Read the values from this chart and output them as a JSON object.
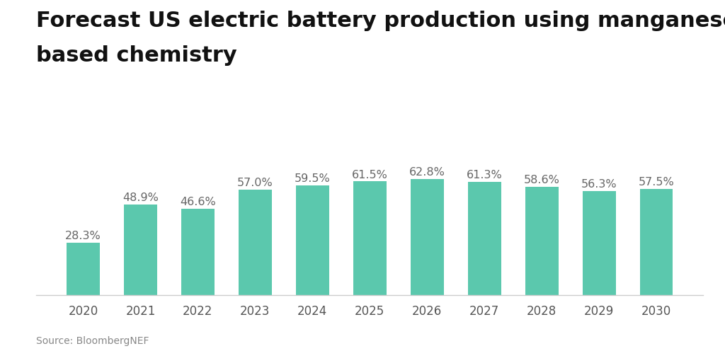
{
  "categories": [
    "2020",
    "2021",
    "2022",
    "2023",
    "2024",
    "2025",
    "2026",
    "2027",
    "2028",
    "2029",
    "2030"
  ],
  "values": [
    28.3,
    48.9,
    46.6,
    57.0,
    59.5,
    61.5,
    62.8,
    61.3,
    58.6,
    56.3,
    57.5
  ],
  "labels": [
    "28.3%",
    "48.9%",
    "46.6%",
    "57.0%",
    "59.5%",
    "61.5%",
    "62.8%",
    "61.3%",
    "58.6%",
    "56.3%",
    "57.5%"
  ],
  "bar_color": "#5BC8AD",
  "background_color": "#ffffff",
  "title_line1": "Forecast US electric battery production using manganese",
  "title_line2": "based chemistry",
  "source_text": "Source: BloombergNEF",
  "title_fontsize": 22,
  "label_fontsize": 11.5,
  "tick_fontsize": 12,
  "source_fontsize": 10,
  "ylim": [
    0,
    80
  ],
  "bar_width": 0.58,
  "label_color": "#666666",
  "tick_color": "#555555"
}
